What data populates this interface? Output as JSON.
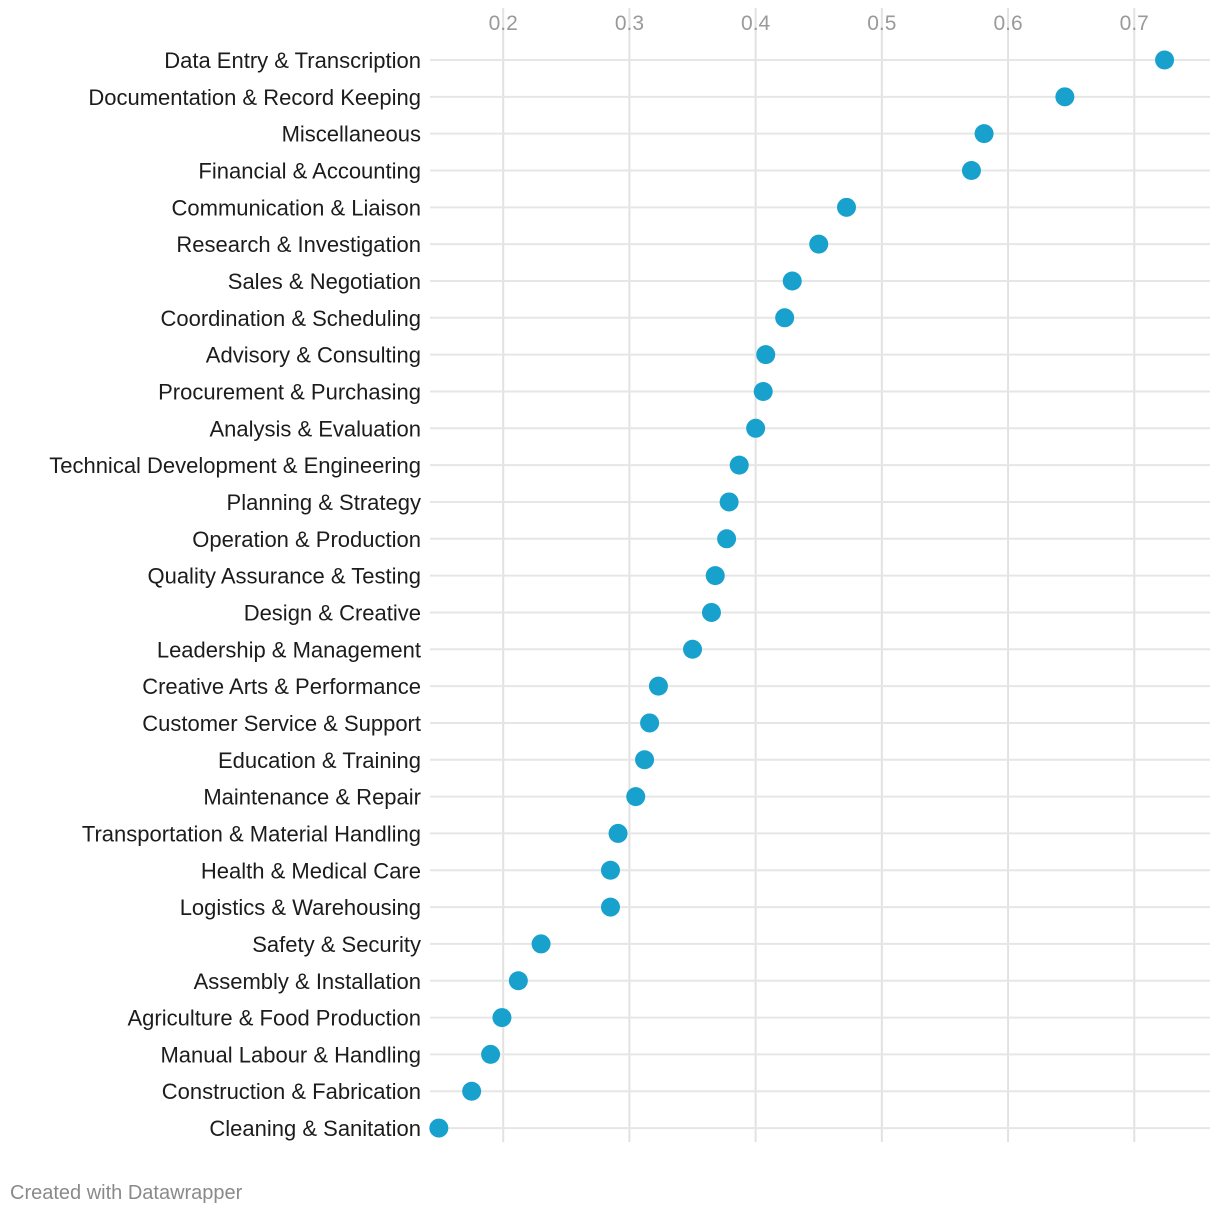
{
  "footer": {
    "credit": "Created with Datawrapper"
  },
  "chart_data": {
    "type": "scatter",
    "orientation": "dot-plot-horizontal",
    "title": "",
    "xlabel": "",
    "ylabel": "",
    "xlim": [
      0.142,
      0.76
    ],
    "x_ticks": [
      0.2,
      0.3,
      0.4,
      0.5,
      0.6,
      0.7
    ],
    "x_tick_labels": [
      "0.2",
      "0.3",
      "0.4",
      "0.5",
      "0.6",
      "0.7"
    ],
    "x_axis_position": "top",
    "grid": true,
    "dot_color": "#18a1cd",
    "categories": [
      "Data Entry & Transcription",
      "Documentation & Record Keeping",
      "Miscellaneous",
      "Financial & Accounting",
      "Communication & Liaison",
      "Research & Investigation",
      "Sales & Negotiation",
      "Coordination & Scheduling",
      "Advisory & Consulting",
      "Procurement & Purchasing",
      "Analysis & Evaluation",
      "Technical Development & Engineering",
      "Planning & Strategy",
      "Operation & Production",
      "Quality Assurance & Testing",
      "Design & Creative",
      "Leadership & Management",
      "Creative Arts & Performance",
      "Customer Service & Support",
      "Education & Training",
      "Maintenance & Repair",
      "Transportation & Material Handling",
      "Health & Medical Care",
      "Logistics & Warehousing",
      "Safety & Security",
      "Assembly & Installation",
      "Agriculture & Food Production",
      "Manual Labour & Handling",
      "Construction & Fabrication",
      "Cleaning & Sanitation"
    ],
    "values": [
      0.724,
      0.645,
      0.581,
      0.571,
      0.472,
      0.45,
      0.429,
      0.423,
      0.408,
      0.406,
      0.4,
      0.387,
      0.379,
      0.377,
      0.368,
      0.365,
      0.35,
      0.323,
      0.316,
      0.312,
      0.305,
      0.291,
      0.285,
      0.285,
      0.23,
      0.212,
      0.199,
      0.19,
      0.175,
      0.149
    ]
  }
}
